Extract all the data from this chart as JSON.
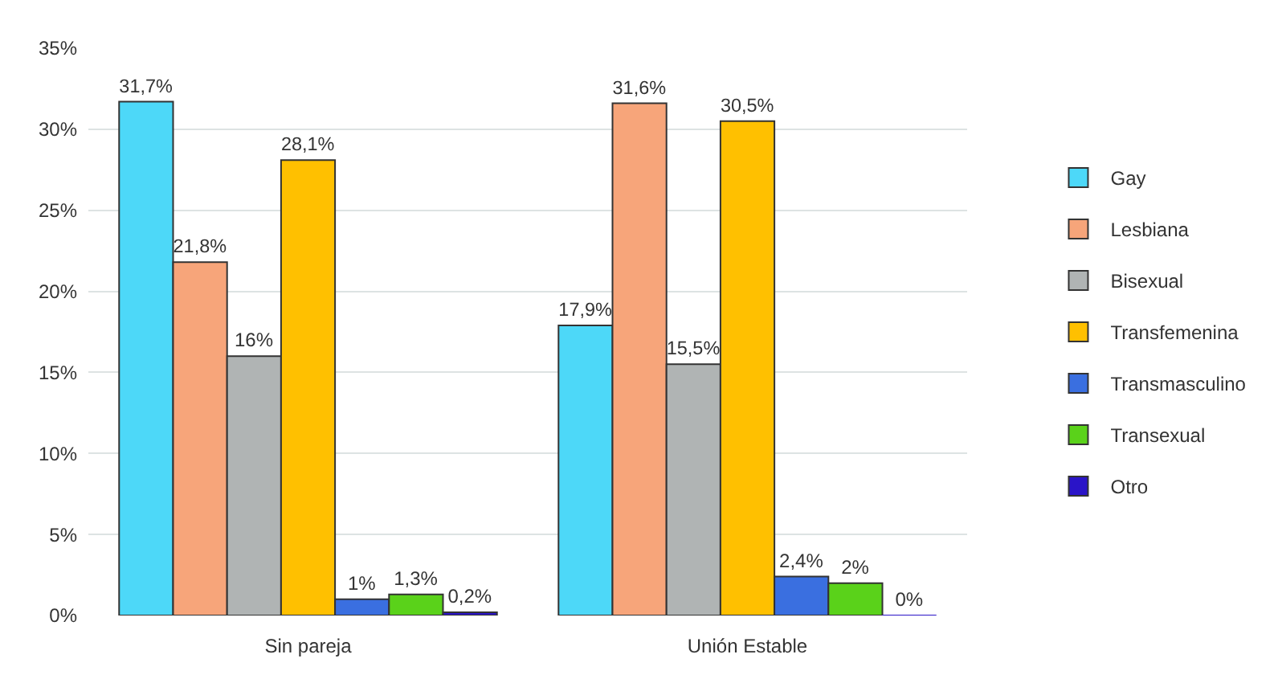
{
  "chart_data": {
    "type": "bar",
    "categories": [
      "Sin pareja",
      "Unión Estable"
    ],
    "series": [
      {
        "name": "Gay",
        "color": "#4dd8f8",
        "values": [
          31.7,
          17.9
        ],
        "value_labels": [
          "31,7%",
          "17,9%"
        ]
      },
      {
        "name": "Lesbiana",
        "color": "#f7a57a",
        "values": [
          21.8,
          31.6
        ],
        "value_labels": [
          "21,8%",
          "31,6%"
        ]
      },
      {
        "name": "Bisexual",
        "color": "#b0b4b4",
        "values": [
          16,
          15.5
        ],
        "value_labels": [
          "16%",
          "15,5%"
        ]
      },
      {
        "name": "Transfemenina",
        "color": "#ffc000",
        "values": [
          28.1,
          30.5
        ],
        "value_labels": [
          "28,1%",
          "30,5%"
        ]
      },
      {
        "name": "Transmasculino",
        "color": "#3a6fe0",
        "values": [
          1,
          2.4
        ],
        "value_labels": [
          "1%",
          "2,4%"
        ]
      },
      {
        "name": "Transexual",
        "color": "#5ad21a",
        "values": [
          1.3,
          2
        ],
        "value_labels": [
          "1,3%",
          "2%"
        ]
      },
      {
        "name": "Otro",
        "color": "#2a14c8",
        "values": [
          0.2,
          0
        ],
        "value_labels": [
          "0,2%",
          "0%"
        ]
      }
    ],
    "ylim": [
      0,
      35
    ],
    "yticks": [
      {
        "value": 0,
        "label": "0%"
      },
      {
        "value": 5,
        "label": "5%"
      },
      {
        "value": 10,
        "label": "10%"
      },
      {
        "value": 15,
        "label": "15%"
      },
      {
        "value": 20,
        "label": "20%"
      },
      {
        "value": 25,
        "label": "25%"
      },
      {
        "value": 30,
        "label": "30%"
      },
      {
        "value": 35,
        "label": "35%"
      }
    ],
    "grid": "y",
    "legend": "right"
  }
}
